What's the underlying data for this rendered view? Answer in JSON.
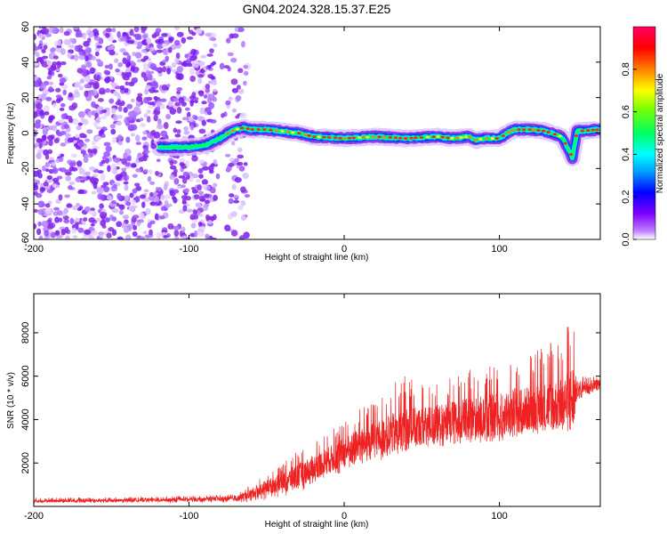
{
  "title": "GN04.2024.328.15.37.E25",
  "colors": {
    "snr_line": "#ee2222",
    "frame": "#000000",
    "background": "#ffffff"
  },
  "chart_data": [
    {
      "type": "heatmap",
      "xlabel": "Height of straight line (km)",
      "ylabel": "Frequency (Hz)",
      "xlim": [
        -200,
        165
      ],
      "ylim": [
        -60,
        60
      ],
      "xticks": [
        -200,
        -100,
        0,
        100
      ],
      "yticks": [
        -60,
        -40,
        -20,
        0,
        20,
        40,
        60
      ],
      "tick_labels_x": [
        "-200",
        "-100",
        "0",
        "100"
      ],
      "tick_labels_y": [
        "-60",
        "-40",
        "-20",
        "0",
        "20",
        "40",
        "60"
      ],
      "colorbar": {
        "label": "Normalized spectral amplitude",
        "range": [
          0,
          1
        ],
        "ticks": [
          "0.0",
          "0.2",
          "0.4",
          "0.6",
          "0.8"
        ],
        "colormap": [
          "#ffffff",
          "#8000ff",
          "#0000ff",
          "#00c0ff",
          "#00ff60",
          "#ffff00",
          "#ff8000",
          "#ff0000",
          "#ff0060"
        ]
      },
      "noise_region": {
        "x_range": [
          -200,
          -62
        ],
        "description": "scattered low-amplitude purple speckle"
      },
      "signal_track": {
        "x": [
          -120,
          -100,
          -90,
          -80,
          -75,
          -70,
          -65,
          -60,
          -50,
          -40,
          -30,
          -20,
          0,
          20,
          40,
          60,
          70,
          80,
          85,
          90,
          100,
          105,
          110,
          120,
          130,
          140,
          145,
          147,
          150,
          165
        ],
        "frequency": [
          -8,
          -8,
          -7,
          -3,
          0,
          2,
          3,
          2,
          2,
          1,
          0,
          -2,
          -3,
          -2,
          -3,
          -2,
          -3,
          -2,
          -4,
          -3,
          -3,
          0,
          2,
          2,
          1,
          -2,
          -10,
          -14,
          1,
          2
        ]
      }
    },
    {
      "type": "line",
      "xlabel": "Height of straight line (km)",
      "ylabel": "SNR (10 * v/v)",
      "xlim": [
        -200,
        165
      ],
      "ylim": [
        0,
        9800
      ],
      "xticks": [
        -200,
        -100,
        0,
        100
      ],
      "yticks": [
        2000,
        4000,
        6000,
        8000
      ],
      "tick_labels_x": [
        "-200",
        "-100",
        "0",
        "100"
      ],
      "tick_labels_y": [
        "2000",
        "4000",
        "6000",
        "8000"
      ],
      "envelope": {
        "x": [
          -200,
          -150,
          -100,
          -70,
          -60,
          -50,
          -40,
          -30,
          -20,
          -10,
          0,
          10,
          20,
          30,
          40,
          50,
          60,
          70,
          80,
          90,
          100,
          110,
          120,
          130,
          140,
          145,
          147,
          150,
          160,
          165
        ],
        "mean": [
          250,
          270,
          320,
          350,
          600,
          900,
          1150,
          1400,
          1800,
          2150,
          2500,
          2900,
          3100,
          3350,
          3550,
          3700,
          3850,
          3950,
          4050,
          4150,
          4250,
          4400,
          4500,
          4600,
          4700,
          4800,
          4850,
          5400,
          5600,
          5700
        ],
        "upper": [
          400,
          420,
          480,
          550,
          1000,
          1500,
          1900,
          2700,
          3000,
          3500,
          4000,
          4500,
          4800,
          5600,
          6100,
          5800,
          5700,
          6000,
          6300,
          6400,
          6600,
          7200,
          7000,
          7500,
          8000,
          8500,
          9800,
          6200,
          6100,
          6000
        ],
        "lower": [
          150,
          160,
          180,
          180,
          200,
          300,
          450,
          600,
          1000,
          1300,
          1500,
          1800,
          2000,
          2300,
          2500,
          2600,
          2700,
          2800,
          2900,
          2950,
          3000,
          3200,
          3300,
          3400,
          3500,
          3300,
          2900,
          4900,
          5200,
          5400
        ]
      }
    }
  ]
}
